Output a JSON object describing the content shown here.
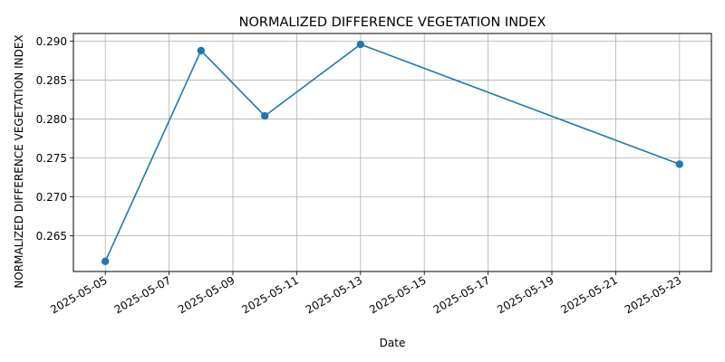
{
  "chart_data": {
    "type": "line",
    "title": "NORMALIZED DIFFERENCE VEGETATION INDEX",
    "xlabel": "Date",
    "ylabel": "NORMALIZED DIFFERENCE VEGETATION INDEX",
    "x": [
      "2025-05-05",
      "2025-05-08",
      "2025-05-10",
      "2025-05-13",
      "2025-05-23"
    ],
    "series": [
      {
        "values": [
          0.2617,
          0.2888,
          0.2804,
          0.2896,
          0.2742
        ]
      }
    ],
    "xlim": [
      "2025-05-04",
      "2025-05-24"
    ],
    "ylim": [
      0.2604,
      0.291
    ],
    "xticks": [
      "2025-05-05",
      "2025-05-07",
      "2025-05-09",
      "2025-05-11",
      "2025-05-13",
      "2025-05-15",
      "2025-05-17",
      "2025-05-19",
      "2025-05-21",
      "2025-05-23"
    ],
    "yticks": [
      "0.265",
      "0.270",
      "0.275",
      "0.280",
      "0.285",
      "0.290"
    ],
    "grid": true,
    "line_color": "#1f77b4"
  }
}
